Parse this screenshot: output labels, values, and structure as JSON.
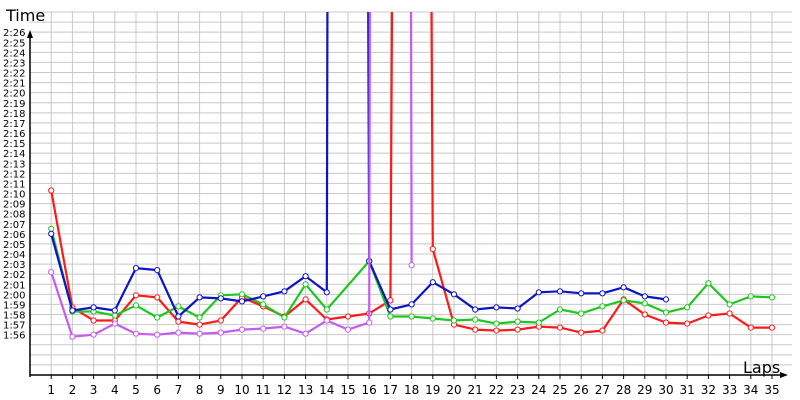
{
  "chart_data": {
    "type": "line",
    "xlabel": "Laps",
    "ylabel": "Time",
    "xlim": [
      0,
      35
    ],
    "ylim": [
      "1:52",
      "2:28"
    ],
    "x_ticks": [
      "1",
      "2",
      "3",
      "4",
      "5",
      "6",
      "7",
      "8",
      "9",
      "10",
      "11",
      "12",
      "13",
      "14",
      "15",
      "16",
      "17",
      "18",
      "19",
      "20",
      "21",
      "22",
      "23",
      "24",
      "25",
      "26",
      "27",
      "28",
      "29",
      "30",
      "31",
      "32",
      "33",
      "34",
      "35"
    ],
    "y_ticks": [
      "1:56",
      "1:57",
      "1:58",
      "1:59",
      "2:00",
      "2:01",
      "2:02",
      "2:03",
      "2:04",
      "2:05",
      "2:06",
      "2:07",
      "2:08",
      "2:09",
      "2:10",
      "2:11",
      "2:12",
      "2:13",
      "2:14",
      "2:15",
      "2:16",
      "2:17",
      "2:18",
      "2:19",
      "2:20",
      "2:21",
      "2:22",
      "2:23",
      "2:24",
      "2:25",
      "2:26"
    ],
    "grid": true,
    "legend": "none",
    "series": [
      {
        "color": "#ff1a1a",
        "points": [
          [
            1,
            130.3
          ],
          [
            2,
            118.7
          ],
          [
            3,
            117.4
          ],
          [
            4,
            117.4
          ],
          [
            5,
            119.9
          ],
          [
            6,
            119.7
          ],
          [
            7,
            117.3
          ],
          [
            8,
            117.0
          ],
          [
            9,
            117.4
          ],
          [
            10,
            119.7
          ],
          [
            11,
            118.8
          ],
          [
            12,
            117.8
          ],
          [
            13,
            119.5
          ],
          [
            14,
            117.5
          ],
          [
            15,
            117.8
          ],
          [
            16,
            118.1
          ],
          [
            17,
            119.4
          ],
          [
            18,
            500
          ],
          [
            19,
            124.5
          ],
          [
            20,
            117.0
          ],
          [
            21,
            116.5
          ],
          [
            22,
            116.4
          ],
          [
            23,
            116.5
          ],
          [
            24,
            116.8
          ],
          [
            25,
            116.7
          ],
          [
            26,
            116.2
          ],
          [
            27,
            116.4
          ],
          [
            28,
            119.5
          ],
          [
            29,
            118.0
          ],
          [
            30,
            117.2
          ],
          [
            31,
            117.1
          ],
          [
            32,
            117.9
          ],
          [
            33,
            118.1
          ],
          [
            34,
            116.7
          ],
          [
            35,
            116.7
          ]
        ]
      },
      {
        "color": "#1ec81e",
        "points": [
          [
            1,
            126.5
          ],
          [
            2,
            118.3
          ],
          [
            3,
            118.3
          ],
          [
            4,
            117.9
          ],
          [
            5,
            118.9
          ],
          [
            6,
            117.7
          ],
          [
            7,
            118.8
          ],
          [
            8,
            117.7
          ],
          [
            9,
            119.9
          ],
          [
            10,
            120.0
          ],
          [
            11,
            119.0
          ],
          [
            12,
            117.7
          ],
          [
            13,
            121.0
          ],
          [
            14,
            118.5
          ],
          [
            16,
            123.3
          ],
          [
            17,
            117.8
          ],
          [
            18,
            117.8
          ],
          [
            19,
            117.6
          ],
          [
            20,
            117.4
          ],
          [
            21,
            117.5
          ],
          [
            22,
            117.1
          ],
          [
            23,
            117.3
          ],
          [
            24,
            117.2
          ],
          [
            25,
            118.5
          ],
          [
            26,
            118.1
          ],
          [
            27,
            118.8
          ],
          [
            28,
            119.4
          ],
          [
            29,
            119.1
          ],
          [
            30,
            118.2
          ],
          [
            31,
            118.7
          ],
          [
            32,
            121.1
          ],
          [
            33,
            119.0
          ],
          [
            34,
            119.8
          ],
          [
            35,
            119.7
          ]
        ]
      },
      {
        "color": "#0d14c8",
        "points": [
          [
            1,
            126.0
          ],
          [
            2,
            118.4
          ],
          [
            3,
            118.7
          ],
          [
            4,
            118.4
          ],
          [
            5,
            122.6
          ],
          [
            6,
            122.4
          ],
          [
            7,
            117.8
          ],
          [
            8,
            119.7
          ],
          [
            9,
            119.6
          ],
          [
            10,
            119.3
          ],
          [
            11,
            119.8
          ],
          [
            12,
            120.3
          ],
          [
            13,
            121.8
          ],
          [
            14,
            120.2
          ],
          [
            14.4,
            500
          ],
          [
            15.3,
            500
          ],
          [
            16,
            123.3
          ],
          [
            17,
            118.5
          ],
          [
            18,
            119.0
          ],
          [
            19,
            121.2
          ],
          [
            20,
            120.0
          ],
          [
            21,
            118.5
          ],
          [
            22,
            118.7
          ],
          [
            23,
            118.6
          ],
          [
            24,
            120.2
          ],
          [
            25,
            120.3
          ],
          [
            26,
            120.1
          ],
          [
            27,
            120.1
          ],
          [
            28,
            120.7
          ],
          [
            29,
            119.8
          ],
          [
            30,
            119.5
          ]
        ]
      },
      {
        "color": "#c85af0",
        "points": [
          [
            1,
            122.2
          ],
          [
            2,
            115.8
          ],
          [
            3,
            116.0
          ],
          [
            4,
            117.1
          ],
          [
            5,
            116.1
          ],
          [
            6,
            116.0
          ],
          [
            7,
            116.2
          ],
          [
            8,
            116.1
          ],
          [
            9,
            116.2
          ],
          [
            10,
            116.5
          ],
          [
            11,
            116.6
          ],
          [
            12,
            116.8
          ],
          [
            13,
            116.1
          ],
          [
            14,
            117.4
          ],
          [
            15,
            116.5
          ],
          [
            16,
            117.2
          ],
          [
            16.4,
            500
          ],
          [
            17.6,
            500
          ],
          [
            18,
            122.9
          ]
        ]
      }
    ]
  }
}
